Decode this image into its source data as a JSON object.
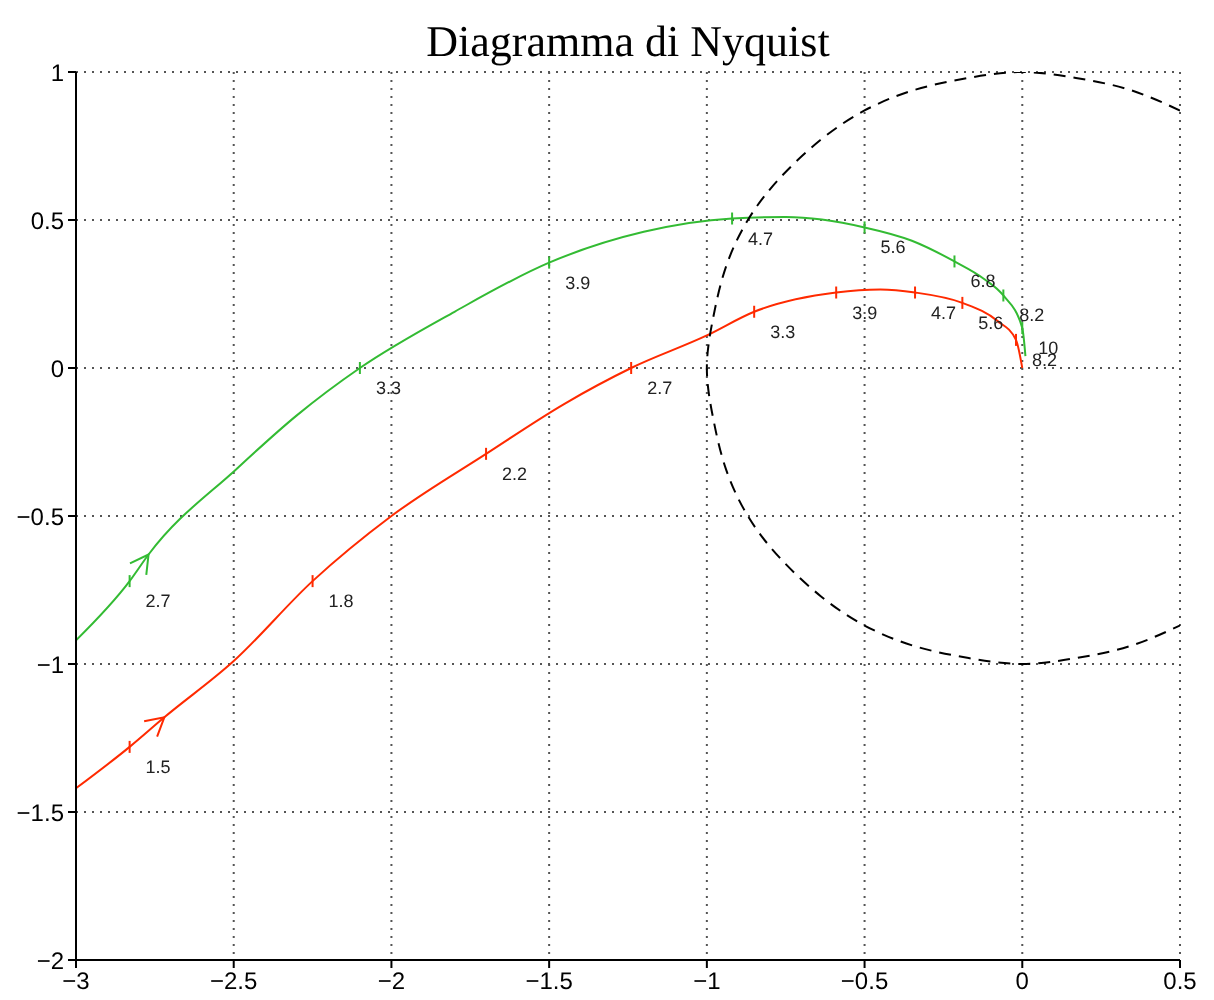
{
  "chart_data": {
    "type": "line",
    "title": "Diagramma di Nyquist",
    "xlim": [
      -3,
      0.5
    ],
    "xticks": [
      -3,
      -2.5,
      -2,
      -1.5,
      -1,
      -0.5,
      0,
      0.5
    ],
    "ylim": [
      -2,
      1
    ],
    "yticks": [
      -2,
      -1.5,
      -1,
      -0.5,
      0,
      0.5,
      1
    ],
    "grid": true,
    "line_style": "solid",
    "marker": "none",
    "series": [
      {
        "color": "#33bb33",
        "x": [
          -3,
          -2.83,
          -2.77,
          -2.49,
          -2.3,
          -2.1,
          -1.8,
          -1.5,
          -1.2,
          -0.92,
          -0.75,
          -0.5,
          -0.35,
          -0.215,
          -0.12,
          -0.06,
          0.0,
          0.01
        ],
        "values": [
          -0.92,
          -0.72,
          -0.63,
          -0.34,
          -0.16,
          0.0,
          0.19,
          0.356,
          0.46,
          0.505,
          0.51,
          0.475,
          0.43,
          0.36,
          0.3,
          0.245,
          0.135,
          0.04
        ]
      },
      {
        "color": "#ff2a00",
        "x": [
          -3,
          -2.83,
          -2.72,
          -2.5,
          -2.25,
          -2.0,
          -1.7,
          -1.45,
          -1.24,
          -1.0,
          -0.85,
          -0.59,
          -0.45,
          -0.34,
          -0.19,
          -0.08,
          -0.02,
          0
        ],
        "values": [
          -1.42,
          -1.28,
          -1.18,
          -0.99,
          -0.72,
          -0.5,
          -0.29,
          -0.12,
          0.0,
          0.11,
          0.19,
          0.255,
          0.265,
          0.255,
          0.22,
          0.16,
          0.095,
          0
        ]
      },
      {
        "color": "#000000",
        "line_style": "dashed",
        "x": [
          0.5,
          0.34,
          0.17,
          0,
          -0.17,
          -0.34,
          -0.5,
          -0.64,
          -0.77,
          -0.87,
          -0.94,
          -0.98,
          -1,
          -0.98,
          -0.94,
          -0.87,
          -0.77,
          -0.64,
          -0.5,
          -0.34,
          -0.17,
          0,
          0.17,
          0.34,
          0.5
        ],
        "values": [
          0.87,
          0.94,
          0.98,
          1,
          0.98,
          0.94,
          0.87,
          0.77,
          0.64,
          0.5,
          0.34,
          0.17,
          0,
          -0.17,
          -0.34,
          -0.5,
          -0.64,
          -0.77,
          -0.87,
          -0.94,
          -0.98,
          -1,
          -0.98,
          -0.94,
          -0.87
        ]
      }
    ],
    "annotations": [
      {
        "text": "2.7",
        "x": -2.83,
        "y": -0.72
      },
      {
        "text": "3.3",
        "x": -2.1,
        "y": 0
      },
      {
        "text": "3.9",
        "x": -1.5,
        "y": 0.356
      },
      {
        "text": "4.7",
        "x": -0.92,
        "y": 0.505
      },
      {
        "text": "5.6",
        "x": -0.5,
        "y": 0.475
      },
      {
        "text": "6.8",
        "x": -0.215,
        "y": 0.36
      },
      {
        "text": "8.2",
        "x": -0.06,
        "y": 0.245
      },
      {
        "text": "10",
        "x": 0,
        "y": 0.135
      },
      {
        "text": "1.5",
        "x": -2.83,
        "y": -1.28
      },
      {
        "text": "1.8",
        "x": -2.25,
        "y": -0.72
      },
      {
        "text": "2.2",
        "x": -1.7,
        "y": -0.29
      },
      {
        "text": "2.7",
        "x": -1.24,
        "y": 0
      },
      {
        "text": "3.3",
        "x": -0.85,
        "y": 0.19
      },
      {
        "text": "3.9",
        "x": -0.59,
        "y": 0.255
      },
      {
        "text": "4.7",
        "x": -0.34,
        "y": 0.255
      },
      {
        "text": "5.6",
        "x": -0.19,
        "y": 0.22
      },
      {
        "text": "8.2",
        "x": -0.02,
        "y": 0.095
      }
    ]
  }
}
